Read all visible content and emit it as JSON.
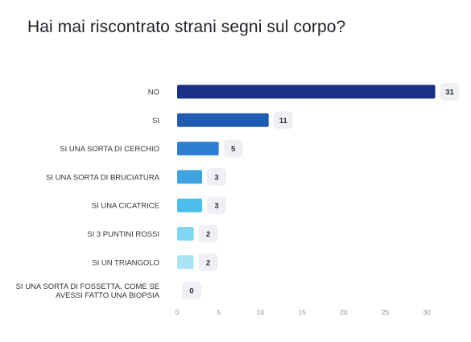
{
  "chart_data": {
    "type": "bar",
    "orientation": "horizontal",
    "title": "Hai mai riscontrato strani segni sul corpo?",
    "categories": [
      "NO",
      "SI",
      "SI UNA SORTA DI CERCHIO",
      "SI UNA SORTA DI BRUCIATURA",
      "SI UNA CICATRICE",
      "SI 3 PUNTINI ROSSI",
      "SI UN TRIANGOLO",
      "SI UNA SORTA DI FOSSETTA, COME SE AVESSI FATTO UNA BIOPSIA"
    ],
    "category_lines": [
      [
        "NO"
      ],
      [
        "SI"
      ],
      [
        "SI UNA SORTA DI CERCHIO"
      ],
      [
        "SI UNA SORTA DI BRUCIATURA"
      ],
      [
        "SI UNA CICATRICE"
      ],
      [
        "SI 3 PUNTINI ROSSI"
      ],
      [
        "SI UN TRIANGOLO"
      ],
      [
        "SI UNA SORTA DI FOSSETTA, COME SE",
        "AVESSI FATTO UNA BIOPSIA"
      ]
    ],
    "values": [
      31,
      11,
      5,
      3,
      3,
      2,
      2,
      0
    ],
    "bar_colors": [
      "#1a2f86",
      "#1f5bb3",
      "#2e7fd2",
      "#3ea5e2",
      "#4cbce8",
      "#7fd6f2",
      "#a9e4f6",
      "#c9eefa"
    ],
    "xlim": [
      0,
      31.5
    ],
    "xticks": [
      0,
      5,
      10,
      15,
      20,
      25,
      30
    ],
    "xlabel": "",
    "ylabel": "",
    "grid": false,
    "legend": "none"
  }
}
